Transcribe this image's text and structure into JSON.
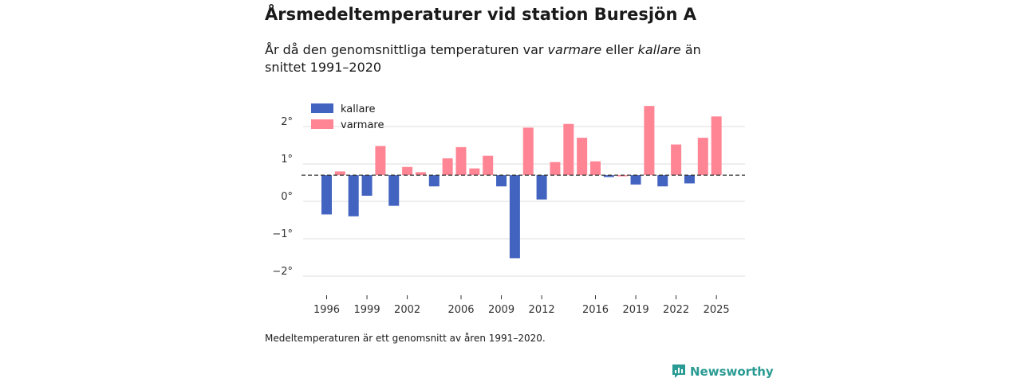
{
  "page": {
    "title": "Årsmedeltemperaturer vid station Buresjön A",
    "subtitle_parts": [
      "År då den genomsnittliga temperaturen var ",
      "varmare",
      " eller ",
      "kallare",
      " än snittet 1991–2020"
    ],
    "footnote": "Medeltemperaturen är ett genomsnitt av åren 1991–2020.",
    "brand": "Newsworthy"
  },
  "colors": {
    "colder": "#4263c0",
    "warmer": "#ff8595",
    "reference": "#333333",
    "grid": "#dddddd",
    "brand": "#2a9b93"
  },
  "chart_data": {
    "type": "bar",
    "title": "Årsmedeltemperaturer vid station Buresjön A",
    "xlabel": "",
    "ylabel": "",
    "ylim": [
      -2.5,
      2.9
    ],
    "reference_line": 0.7,
    "yticks": [
      -2,
      -1,
      0,
      1,
      2
    ],
    "ytick_labels": [
      "−2°",
      "−1°",
      "0°",
      "1°",
      "2°"
    ],
    "xtick_years": [
      1996,
      1999,
      2002,
      2006,
      2009,
      2012,
      2016,
      2019,
      2022,
      2025
    ],
    "legend": [
      {
        "key": "colder",
        "label": "kallare"
      },
      {
        "key": "warmer",
        "label": "varmare"
      }
    ],
    "legend_position": "top-left",
    "years": [
      1996,
      1997,
      1998,
      1999,
      2000,
      2001,
      2002,
      2003,
      2004,
      2005,
      2006,
      2007,
      2008,
      2009,
      2010,
      2011,
      2012,
      2013,
      2014,
      2015,
      2016,
      2017,
      2018,
      2019,
      2020,
      2021,
      2022,
      2023,
      2024,
      2025
    ],
    "values": [
      -0.35,
      0.8,
      -0.4,
      0.15,
      1.48,
      -0.12,
      0.92,
      0.78,
      0.4,
      1.15,
      1.45,
      0.88,
      1.22,
      0.4,
      -1.52,
      1.97,
      0.05,
      1.05,
      2.07,
      1.7,
      1.07,
      0.65,
      0.7,
      0.45,
      2.55,
      0.4,
      1.52,
      0.48,
      1.7,
      2.27
    ]
  }
}
